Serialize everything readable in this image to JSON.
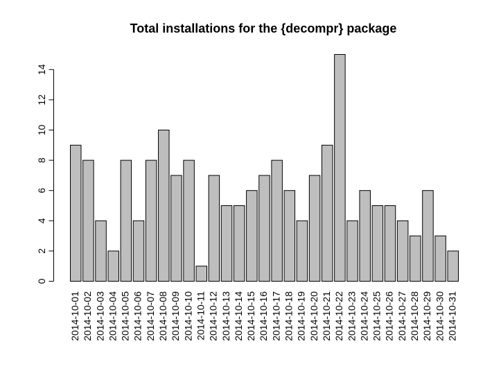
{
  "chart_data": {
    "type": "bar",
    "title": "Total installations for the {decompr} package",
    "xlabel": "",
    "ylabel": "",
    "ylim": [
      0,
      15
    ],
    "yticks": [
      0,
      2,
      4,
      6,
      8,
      10,
      12,
      14
    ],
    "categories": [
      "2014-10-01",
      "2014-10-02",
      "2014-10-03",
      "2014-10-04",
      "2014-10-05",
      "2014-10-06",
      "2014-10-07",
      "2014-10-08",
      "2014-10-09",
      "2014-10-10",
      "2014-10-11",
      "2014-10-12",
      "2014-10-13",
      "2014-10-14",
      "2014-10-15",
      "2014-10-16",
      "2014-10-17",
      "2014-10-18",
      "2014-10-19",
      "2014-10-20",
      "2014-10-21",
      "2014-10-22",
      "2014-10-23",
      "2014-10-24",
      "2014-10-25",
      "2014-10-26",
      "2014-10-27",
      "2014-10-28",
      "2014-10-29",
      "2014-10-30",
      "2014-10-31"
    ],
    "values": [
      9,
      8,
      4,
      2,
      8,
      4,
      8,
      10,
      7,
      8,
      1,
      7,
      5,
      5,
      6,
      7,
      8,
      6,
      4,
      7,
      9,
      15,
      4,
      6,
      5,
      5,
      4,
      3,
      6,
      3,
      2
    ],
    "bar_color": "#bebebe",
    "grid": false,
    "legend": "none"
  }
}
